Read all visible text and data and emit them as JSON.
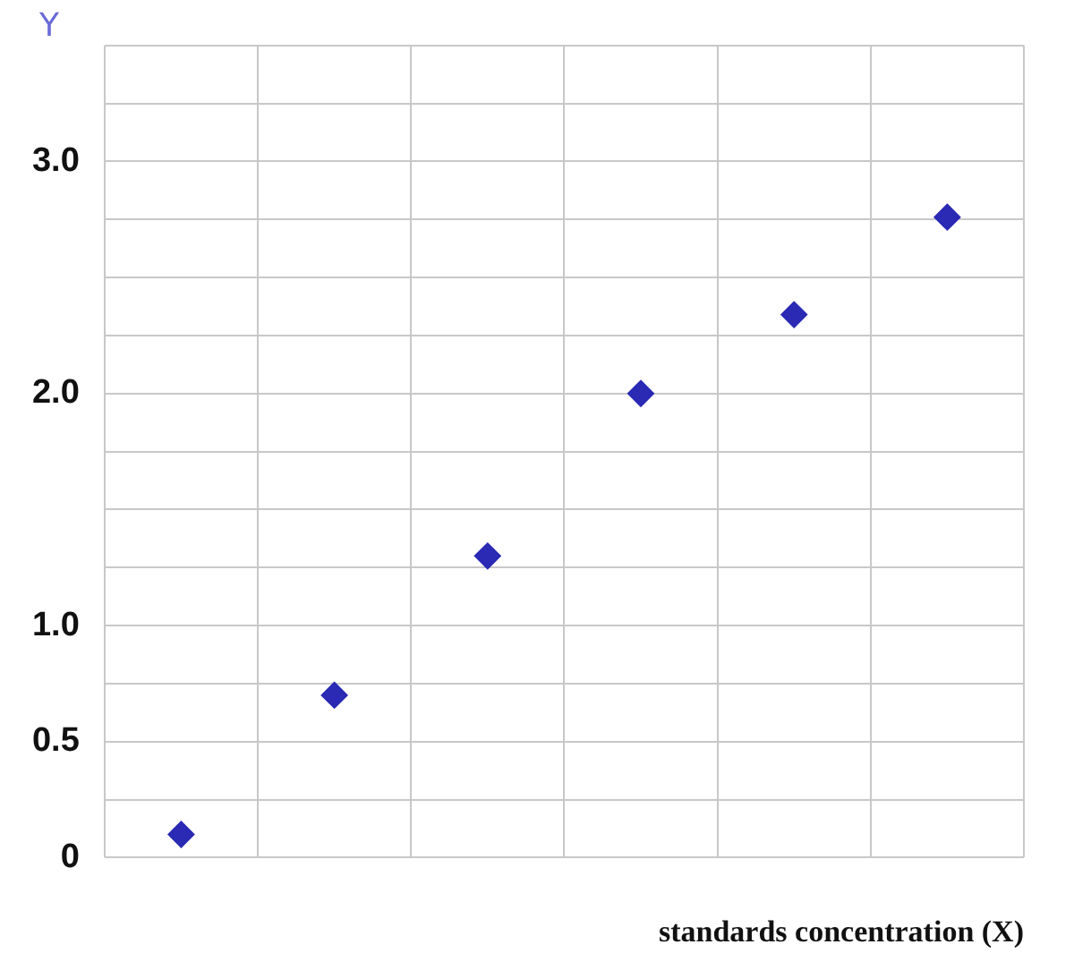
{
  "chart_data": {
    "type": "scatter",
    "xlabel": "standards concentration (X)",
    "ylabel": "Y",
    "categories": [
      null,
      null,
      null,
      null,
      null,
      null
    ],
    "series": [
      {
        "color": "#2a2ab4",
        "values": [
          0.1,
          0.7,
          1.3,
          2.0,
          2.34,
          2.76
        ]
      }
    ],
    "ylim": [
      0,
      3.5
    ],
    "yticks": [
      {
        "value": 0,
        "label": "0"
      },
      {
        "value": 0.25,
        "label": null
      },
      {
        "value": 0.5,
        "label": "0.5"
      },
      {
        "value": 0.75,
        "label": null
      },
      {
        "value": 1,
        "label": "1.0"
      },
      {
        "value": 1.25,
        "label": null
      },
      {
        "value": 1.5,
        "label": null
      },
      {
        "value": 1.75,
        "label": null
      },
      {
        "value": 2,
        "label": "2.0"
      },
      {
        "value": 2.25,
        "label": null
      },
      {
        "value": 2.5,
        "label": null
      },
      {
        "value": 2.75,
        "label": null
      },
      {
        "value": 3,
        "label": "3.0"
      },
      {
        "value": 3.25,
        "label": null
      },
      {
        "value": 3.5,
        "label": null
      }
    ],
    "grid": true,
    "marker": "diamond",
    "legend": false
  }
}
